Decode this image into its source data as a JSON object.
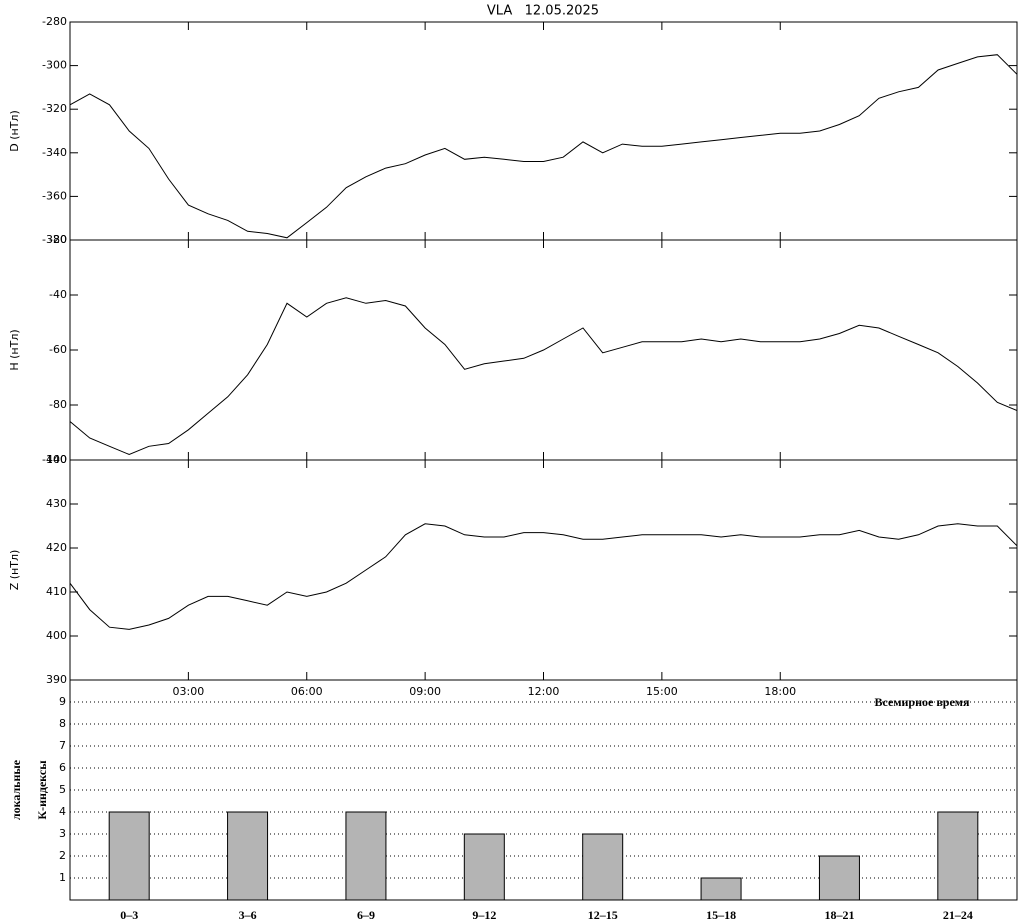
{
  "title": "VLA   12.05.2025",
  "chart_data": [
    {
      "type": "line",
      "ylabel": "D (нТл)",
      "color": "#000000",
      "x": [
        0,
        0.5,
        1,
        1.5,
        2,
        2.5,
        3,
        3.5,
        4,
        4.5,
        5,
        5.5,
        6,
        6.5,
        7,
        7.5,
        8,
        8.5,
        9,
        9.5,
        10,
        10.5,
        11,
        11.5,
        12,
        12.5,
        13,
        13.5,
        14,
        14.5,
        15,
        15.5,
        16,
        16.5,
        17,
        17.5,
        18,
        18.5,
        19,
        19.5,
        20,
        20.5,
        21,
        21.5,
        22,
        22.5,
        23,
        23.5,
        24
      ],
      "values": [
        -318,
        -313,
        -318,
        -330,
        -338,
        -352,
        -364,
        -368,
        -371,
        -376,
        -377,
        -379,
        -372,
        -365,
        -356,
        -351,
        -347,
        -345,
        -341,
        -338,
        -343,
        -342,
        -343,
        -344,
        -344,
        -342,
        -335,
        -340,
        -336,
        -337,
        -337,
        -336,
        -335,
        -334,
        -333,
        -332,
        -331,
        -331,
        -330,
        -327,
        -323,
        -315,
        -312,
        -310,
        -302,
        -299,
        -296,
        -295,
        -304
      ],
      "xlim": [
        0,
        24
      ],
      "ylim": [
        -380,
        -280
      ],
      "yticks": [
        -380,
        -360,
        -340,
        -320,
        -300,
        -280
      ]
    },
    {
      "type": "line",
      "ylabel": "H (нТл)",
      "color": "#000000",
      "x": [
        0,
        0.5,
        1,
        1.5,
        2,
        2.5,
        3,
        3.5,
        4,
        4.5,
        5,
        5.5,
        6,
        6.5,
        7,
        7.5,
        8,
        8.5,
        9,
        9.5,
        10,
        10.5,
        11,
        11.5,
        12,
        12.5,
        13,
        13.5,
        14,
        14.5,
        15,
        15.5,
        16,
        16.5,
        17,
        17.5,
        18,
        18.5,
        19,
        19.5,
        20,
        20.5,
        21,
        21.5,
        22,
        22.5,
        23,
        23.5,
        24
      ],
      "values": [
        -86,
        -92,
        -95,
        -98,
        -95,
        -94,
        -89,
        -83,
        -77,
        -69,
        -58,
        -43,
        -48,
        -43,
        -41,
        -43,
        -42,
        -44,
        -52,
        -58,
        -67,
        -65,
        -64,
        -63,
        -60,
        -56,
        -52,
        -61,
        -59,
        -57,
        -57,
        -57,
        -56,
        -57,
        -56,
        -57,
        -57,
        -57,
        -56,
        -54,
        -51,
        -52,
        -55,
        -58,
        -61,
        -66,
        -72,
        -79,
        -82
      ],
      "xlim": [
        0,
        24
      ],
      "ylim": [
        -100,
        -20
      ],
      "yticks": [
        -100,
        -80,
        -60,
        -40,
        -20
      ]
    },
    {
      "type": "line",
      "ylabel": "Z (нТл)",
      "xlabel": "Всемирное время",
      "color": "#000000",
      "x": [
        0,
        0.5,
        1,
        1.5,
        2,
        2.5,
        3,
        3.5,
        4,
        4.5,
        5,
        5.5,
        6,
        6.5,
        7,
        7.5,
        8,
        8.5,
        9,
        9.5,
        10,
        10.5,
        11,
        11.5,
        12,
        12.5,
        13,
        13.5,
        14,
        14.5,
        15,
        15.5,
        16,
        16.5,
        17,
        17.5,
        18,
        18.5,
        19,
        19.5,
        20,
        20.5,
        21,
        21.5,
        22,
        22.5,
        23,
        23.5,
        24
      ],
      "values": [
        412,
        406,
        402,
        401.5,
        402.5,
        404,
        407,
        409,
        409,
        408,
        407,
        410,
        409,
        410,
        412,
        415,
        418,
        423,
        425.5,
        425,
        423,
        422.5,
        422.5,
        423.5,
        423.5,
        423,
        422,
        422,
        422.5,
        423,
        423,
        423,
        423,
        422.5,
        423,
        422.5,
        422.5,
        422.5,
        423,
        423,
        424,
        422.5,
        422,
        423,
        425,
        425.5,
        425,
        425,
        420.5
      ],
      "xlim": [
        0,
        24
      ],
      "ylim": [
        390,
        440
      ],
      "yticks": [
        390,
        400,
        410,
        420,
        430,
        440
      ],
      "xticks": [
        {
          "value": 3,
          "label": "03:00"
        },
        {
          "value": 6,
          "label": "06:00"
        },
        {
          "value": 9,
          "label": "09:00"
        },
        {
          "value": 12,
          "label": "12:00"
        },
        {
          "value": 15,
          "label": "15:00"
        },
        {
          "value": 18,
          "label": "18:00"
        }
      ]
    },
    {
      "type": "bar",
      "ylabel": [
        "локальные",
        "К-индексы"
      ],
      "color": "#b4b4b4",
      "grid": true,
      "categories": [
        "0–3",
        "3–6",
        "6–9",
        "9–12",
        "12–15",
        "15–18",
        "18–21",
        "21–24"
      ],
      "values": [
        4,
        4,
        4,
        3,
        3,
        1,
        2,
        4
      ],
      "ylim": [
        0,
        10
      ],
      "yticks": [
        1,
        2,
        3,
        4,
        5,
        6,
        7,
        8,
        9
      ]
    }
  ]
}
